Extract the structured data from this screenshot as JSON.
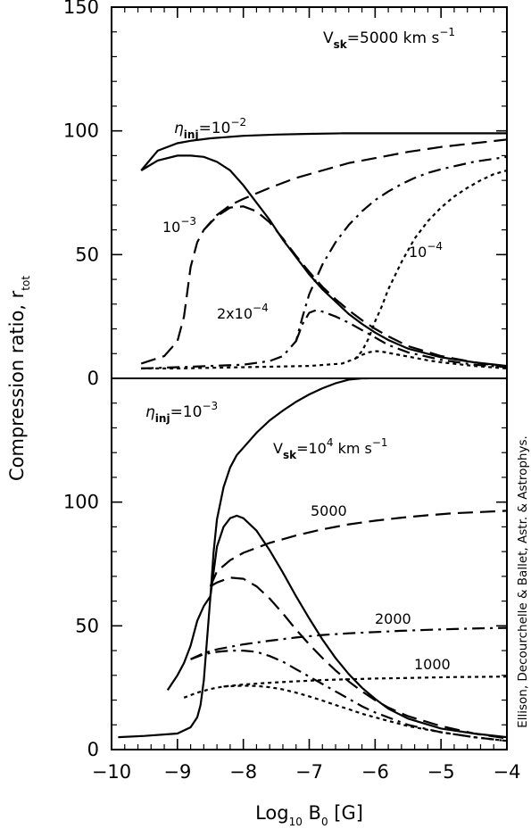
{
  "chart_data": [
    {
      "type": "line",
      "panel": "top",
      "annotation": [
        "V",
        "sk",
        "=5000 km s",
        "−1"
      ],
      "xlim": [
        -10,
        -4
      ],
      "ylim": [
        0,
        150
      ],
      "yticks": [
        "0",
        "50",
        "100",
        "150"
      ],
      "series": [
        {
          "name": "η_inj=10^-2",
          "style": "solid",
          "x": [
            -9.55,
            -9.3,
            -9.0,
            -8.8,
            -8.5,
            -8.0,
            -7.5,
            -7.0,
            -6.5,
            -6.0,
            -5.5,
            -5.0,
            -4.5,
            -4.0
          ],
          "y": [
            84,
            92,
            95,
            96,
            97,
            98,
            98.5,
            98.8,
            99,
            99,
            99,
            99,
            99,
            99
          ]
        },
        {
          "name": "η_inj=10^-2 (efficient)",
          "style": "solid",
          "x": [
            -9.55,
            -9.3,
            -9.0,
            -8.8,
            -8.6,
            -8.4,
            -8.2,
            -8.0,
            -7.8,
            -7.6,
            -7.4,
            -7.2,
            -7.0,
            -6.8,
            -6.6,
            -6.4,
            -6.2,
            -6.0,
            -5.8,
            -5.5,
            -5.0,
            -4.5,
            -4.0
          ],
          "y": [
            84,
            88,
            90,
            90,
            89.5,
            87.5,
            84,
            78,
            71,
            64,
            56,
            49,
            42,
            36,
            31,
            26,
            22,
            18.5,
            15.5,
            12,
            8.5,
            6.5,
            5
          ]
        },
        {
          "name": "10^-3",
          "style": "dashed",
          "x": [
            -9.55,
            -9.2,
            -9.0,
            -8.9,
            -8.8,
            -8.7,
            -8.6,
            -8.4,
            -8.2,
            -8.0,
            -7.6,
            -7.2,
            -6.8,
            -6.4,
            -6.0,
            -5.5,
            -5.0,
            -4.5,
            -4.0
          ],
          "y": [
            6,
            9,
            15,
            25,
            45,
            55,
            60,
            66,
            70,
            72.5,
            77,
            81,
            84,
            87,
            89,
            91.5,
            93.5,
            95,
            96.5
          ]
        },
        {
          "name": "10^-3 (efficient)",
          "style": "dashed",
          "x": [
            -8.6,
            -8.4,
            -8.2,
            -8.0,
            -7.8,
            -7.6,
            -7.4,
            -7.2,
            -7.0,
            -6.8,
            -6.6,
            -6.4,
            -6.2,
            -6.0,
            -5.8,
            -5.5,
            -5.0,
            -4.5,
            -4.0
          ],
          "y": [
            60,
            65.5,
            69,
            69.5,
            67.5,
            63,
            56.5,
            49.5,
            43,
            37,
            32,
            27.5,
            23.5,
            20,
            17,
            13,
            9,
            6.5,
            4.5
          ]
        },
        {
          "name": "2x10^-4",
          "style": "dashdot",
          "x": [
            -9.55,
            -9.0,
            -8.5,
            -8.0,
            -7.6,
            -7.4,
            -7.2,
            -7.1,
            -7.0,
            -6.9,
            -6.8,
            -6.6,
            -6.4,
            -6.2,
            -6.0,
            -5.8,
            -5.6,
            -5.4,
            -5.2,
            -5.0,
            -4.5,
            -4.0
          ],
          "y": [
            4,
            4.5,
            5,
            5.5,
            7,
            9,
            15,
            25,
            34,
            40,
            46,
            55,
            62,
            67.5,
            72,
            75.5,
            78.5,
            81,
            83,
            84.5,
            87.5,
            89.5
          ]
        },
        {
          "name": "2x10^-4 (efficient)",
          "style": "dashdot",
          "x": [
            -7.2,
            -7.1,
            -7.0,
            -6.9,
            -6.8,
            -6.6,
            -6.4,
            -6.2,
            -6.0,
            -5.8,
            -5.5,
            -5.0,
            -4.5,
            -4.0
          ],
          "y": [
            15,
            22,
            26.5,
            27.5,
            27,
            25,
            22.5,
            19.5,
            16.5,
            13.5,
            10.5,
            7.5,
            5.5,
            4.5
          ]
        },
        {
          "name": "10^-4",
          "style": "dotted",
          "x": [
            -9.55,
            -9.0,
            -8.0,
            -7.0,
            -6.5,
            -6.3,
            -6.2,
            -6.1,
            -6.0,
            -5.9,
            -5.8,
            -5.6,
            -5.4,
            -5.2,
            -5.0,
            -4.8,
            -4.6,
            -4.4,
            -4.2,
            -4.0
          ],
          "y": [
            4,
            4,
            4.5,
            5,
            6,
            8,
            11,
            16,
            23,
            29,
            36,
            47,
            56.5,
            63.5,
            69,
            73.5,
            77,
            80,
            82.5,
            84
          ]
        },
        {
          "name": "10^-4 (efficient)",
          "style": "dotted",
          "x": [
            -6.3,
            -6.2,
            -6.1,
            -6.0,
            -5.9,
            -5.8,
            -5.6,
            -5.4,
            -5.2,
            -5.0,
            -4.5,
            -4.0
          ],
          "y": [
            8,
            9.5,
            10.5,
            11,
            10.8,
            10.3,
            9.3,
            8.3,
            7.3,
            6.5,
            5,
            4
          ]
        }
      ],
      "labels": [
        {
          "parts": [
            "η",
            "inj",
            "=10",
            "−2"
          ]
        },
        {
          "parts": [
            "10",
            "−3"
          ]
        },
        {
          "parts": [
            "2x10",
            "−4"
          ]
        },
        {
          "parts": [
            "10",
            "−4"
          ]
        }
      ]
    },
    {
      "type": "line",
      "panel": "bottom",
      "annotation": [
        "η",
        "inj",
        "=10",
        "−3"
      ],
      "xlim": [
        -10,
        -4
      ],
      "ylim": [
        0,
        150
      ],
      "yticks": [
        "0",
        "50",
        "100"
      ],
      "series": [
        {
          "name": "V_sk=10^4 km s^-1",
          "style": "solid",
          "x": [
            -9.9,
            -9.5,
            -9.0,
            -8.8,
            -8.7,
            -8.65,
            -8.6,
            -8.55,
            -8.5,
            -8.45,
            -8.4,
            -8.3,
            -8.2,
            -8.1,
            -8.0,
            -7.8,
            -7.6,
            -7.4,
            -7.2,
            -7.0,
            -6.8,
            -6.6,
            -6.4,
            -6.2,
            -6.1
          ],
          "y": [
            5,
            5.5,
            6.5,
            9,
            13,
            18,
            28,
            45,
            62,
            80,
            93,
            106,
            114,
            119,
            122,
            128,
            133,
            137,
            140.5,
            143.5,
            146,
            148,
            149.5,
            150,
            150
          ]
        },
        {
          "name": "V_sk=10^4 (efficient)",
          "style": "solid",
          "x": [
            -8.5,
            -8.4,
            -8.3,
            -8.2,
            -8.1,
            -8.0,
            -7.8,
            -7.6,
            -7.4,
            -7.2,
            -7.0,
            -6.8,
            -6.6,
            -6.4,
            -6.2,
            -6.0,
            -5.8,
            -5.5,
            -5.0,
            -4.5,
            -4.0
          ],
          "y": [
            62,
            82,
            90,
            93.5,
            94.5,
            93.5,
            88.5,
            80.5,
            71.5,
            62,
            53,
            44.5,
            37,
            30.5,
            25,
            20.5,
            16.5,
            12.5,
            8.5,
            6.5,
            5
          ]
        },
        {
          "name": "5000",
          "style": "dashed",
          "x": [
            -8.5,
            -8.4,
            -8.2,
            -8.0,
            -7.8,
            -7.6,
            -7.2,
            -6.8,
            -6.4,
            -6.0,
            -5.6,
            -5.2,
            -4.8,
            -4.4,
            -4.0
          ],
          "y": [
            66,
            72,
            76.5,
            79.5,
            81.5,
            83.5,
            86.5,
            89,
            91,
            92.5,
            93.7,
            94.7,
            95.5,
            96,
            96.5
          ]
        },
        {
          "name": "5000 (efficient)",
          "style": "dashed",
          "x": [
            -8.5,
            -8.4,
            -8.2,
            -8.0,
            -7.8,
            -7.6,
            -7.4,
            -7.2,
            -7.0,
            -6.8,
            -6.6,
            -6.4,
            -6.2,
            -6.0,
            -5.8,
            -5.5,
            -5.0,
            -4.5,
            -4.0
          ],
          "y": [
            66,
            67.5,
            69.5,
            69,
            66,
            61,
            55,
            48.5,
            42.5,
            37,
            32,
            27.5,
            23.5,
            20,
            17,
            13.5,
            9.5,
            6.5,
            4.5
          ]
        },
        {
          "name": "2000",
          "style": "dashdot",
          "x": [
            -8.8,
            -8.6,
            -8.4,
            -8.2,
            -8.0,
            -7.6,
            -7.2,
            -6.8,
            -6.4,
            -6.0,
            -5.6,
            -5.2,
            -4.8,
            -4.4,
            -4.0
          ],
          "y": [
            36.5,
            39,
            40.5,
            41.5,
            42.5,
            44,
            45.3,
            46.3,
            47,
            47.5,
            48,
            48.4,
            48.7,
            49,
            49.2
          ]
        },
        {
          "name": "2000 (efficient)",
          "style": "dashdot",
          "x": [
            -8.8,
            -8.6,
            -8.4,
            -8.2,
            -8.0,
            -7.8,
            -7.6,
            -7.4,
            -7.2,
            -7.0,
            -6.8,
            -6.6,
            -6.4,
            -6.2,
            -6.0,
            -5.5,
            -5.0,
            -4.5,
            -4.0
          ],
          "y": [
            36.5,
            38.5,
            39.5,
            40,
            40,
            39.5,
            37.8,
            35.5,
            32.5,
            29.5,
            26.5,
            23.5,
            20.5,
            17.5,
            15,
            10,
            7,
            5,
            3.5
          ]
        },
        {
          "name": "1000",
          "style": "dotted",
          "x": [
            -8.9,
            -8.7,
            -8.5,
            -8.3,
            -8.0,
            -7.6,
            -7.2,
            -6.8,
            -6.4,
            -6.0,
            -5.6,
            -5.2,
            -4.8,
            -4.4,
            -4.0
          ],
          "y": [
            21,
            23,
            24.5,
            25.5,
            26.3,
            27,
            27.6,
            28.1,
            28.4,
            28.7,
            28.9,
            29.1,
            29.3,
            29.4,
            29.5
          ]
        },
        {
          "name": "1000 (efficient)",
          "style": "dotted",
          "x": [
            -8.3,
            -8.0,
            -7.8,
            -7.6,
            -7.4,
            -7.2,
            -7.0,
            -6.8,
            -6.6,
            -6.4,
            -6.2,
            -6.0,
            -5.5,
            -5.0,
            -4.5,
            -4.0
          ],
          "y": [
            25.5,
            25.8,
            25.7,
            25.2,
            24.3,
            23,
            21.5,
            19.8,
            18,
            16.3,
            14.5,
            13,
            9.5,
            7,
            5,
            3.5
          ]
        },
        {
          "name": "V_sk=10^4 low-start",
          "style": "solid",
          "x": [
            -9.15,
            -9.0,
            -8.9,
            -8.8,
            -8.7,
            -8.6,
            -8.5
          ],
          "y": [
            24,
            30,
            35,
            42,
            52,
            58,
            62
          ]
        }
      ],
      "labels": [
        {
          "parts": [
            "V",
            "sk",
            "=10",
            "4",
            " km s",
            "−1"
          ]
        },
        {
          "parts": [
            "5000"
          ]
        },
        {
          "parts": [
            "2000"
          ]
        },
        {
          "parts": [
            "1000"
          ]
        }
      ]
    }
  ],
  "xticks": [
    "−10",
    "−9",
    "−8",
    "−7",
    "−6",
    "−5",
    "−4"
  ],
  "xlabel": [
    "Log",
    "10",
    " B",
    "0",
    " [G]"
  ],
  "ylabel": [
    "Compression ratio,  r",
    "tot"
  ],
  "credit": "Ellison, Decourchelle & Ballet, Astr. & Astrophys."
}
